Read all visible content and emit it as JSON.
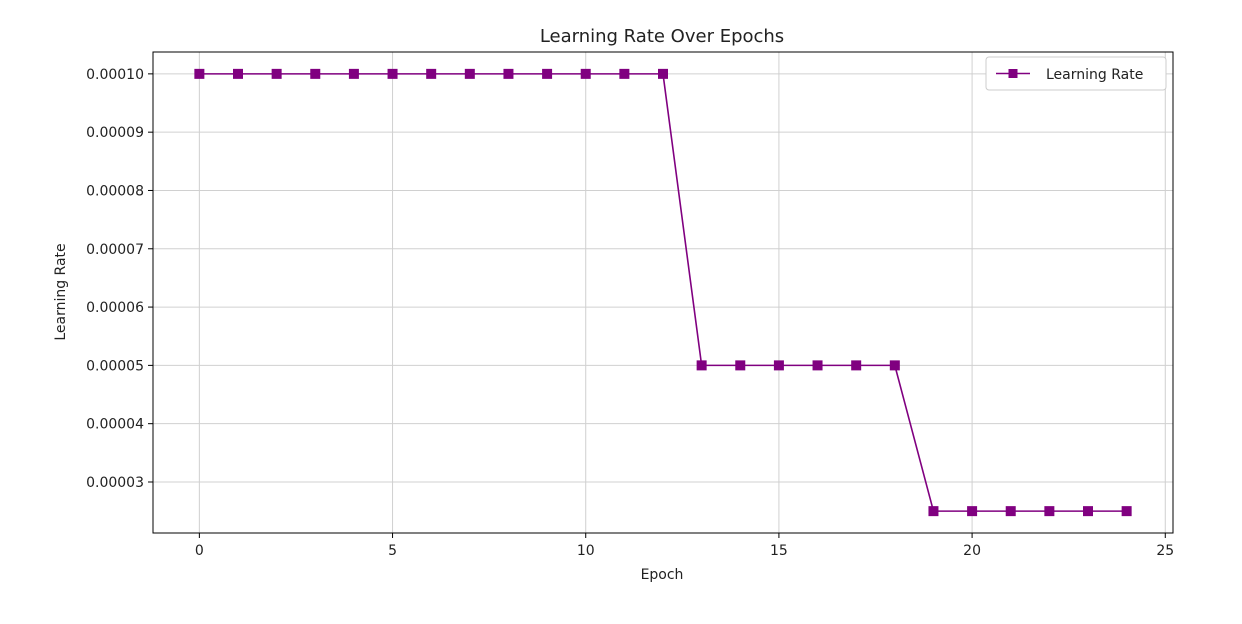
{
  "chart_data": {
    "type": "line",
    "title": "Learning Rate Over Epochs",
    "xlabel": "Epoch",
    "ylabel": "Learning Rate",
    "xlim": [
      -1.2,
      25.2
    ],
    "ylim": [
      2.125e-05,
      0.00010375
    ],
    "xticks": [
      0,
      5,
      10,
      15,
      20,
      25
    ],
    "xtick_labels": [
      "0",
      "5",
      "10",
      "15",
      "20",
      "25"
    ],
    "yticks": [
      3e-05,
      4e-05,
      5e-05,
      6e-05,
      7e-05,
      8e-05,
      9e-05,
      0.0001
    ],
    "ytick_labels": [
      "0.00003",
      "0.00004",
      "0.00005",
      "0.00006",
      "0.00007",
      "0.00008",
      "0.00009",
      "0.00010"
    ],
    "grid": true,
    "legend": {
      "position": "top-right"
    },
    "series": [
      {
        "name": "Learning Rate",
        "color": "#800080",
        "marker": "square",
        "x": [
          0,
          1,
          2,
          3,
          4,
          5,
          6,
          7,
          8,
          9,
          10,
          11,
          12,
          13,
          14,
          15,
          16,
          17,
          18,
          19,
          20,
          21,
          22,
          23,
          24
        ],
        "y": [
          0.0001,
          0.0001,
          0.0001,
          0.0001,
          0.0001,
          0.0001,
          0.0001,
          0.0001,
          0.0001,
          0.0001,
          0.0001,
          0.0001,
          0.0001,
          5e-05,
          5e-05,
          5e-05,
          5e-05,
          5e-05,
          5e-05,
          2.5e-05,
          2.5e-05,
          2.5e-05,
          2.5e-05,
          2.5e-05,
          2.5e-05
        ]
      }
    ]
  }
}
